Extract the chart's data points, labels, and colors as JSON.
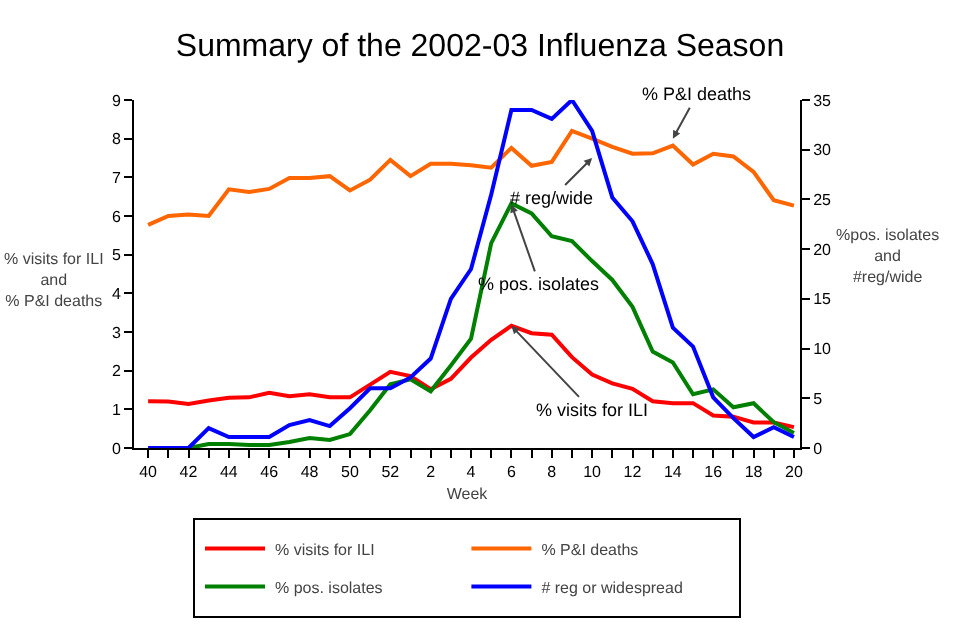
{
  "chart_data": {
    "type": "line",
    "title": "Summary of the 2002-03 Influenza Season",
    "xlabel": "Week",
    "ylabel": "% visits for ILI\nand\n% P&I deaths",
    "y2label": "%pos. isolates\nand\n#reg/wide",
    "categories": [
      "40",
      null,
      "42",
      null,
      "44",
      null,
      "46",
      null,
      "48",
      null,
      "50",
      null,
      "52",
      null,
      "2",
      null,
      "4",
      null,
      "6",
      null,
      "8",
      null,
      "10",
      null,
      "12",
      null,
      "14",
      null,
      "16",
      null,
      "18",
      null,
      "20"
    ],
    "series": [
      {
        "name": "% visits for ILI",
        "color": "#ff0000",
        "values": [
          1.21,
          1.2,
          1.14,
          1.23,
          1.3,
          1.31,
          1.43,
          1.34,
          1.39,
          1.31,
          1.31,
          1.64,
          1.97,
          1.86,
          1.52,
          1.79,
          2.34,
          2.8,
          3.16,
          2.97,
          2.93,
          2.35,
          1.9,
          1.67,
          1.53,
          1.21,
          1.16,
          1.16,
          0.84,
          0.81,
          0.66,
          0.66,
          0.54
        ]
      },
      {
        "name": "% P&I deaths",
        "color": "#ff6600",
        "values": [
          5.77,
          6.0,
          6.04,
          6.0,
          6.69,
          6.62,
          6.7,
          6.98,
          6.98,
          7.03,
          6.66,
          6.94,
          7.45,
          7.03,
          7.35,
          7.35,
          7.31,
          7.25,
          7.76,
          7.3,
          7.4,
          8.2,
          8.0,
          7.79,
          7.61,
          7.62,
          7.82,
          7.33,
          7.61,
          7.54,
          7.14,
          6.41,
          6.27
        ]
      },
      {
        "name": "% pos. isolates",
        "color": "#008000",
        "axis": "y2",
        "values": [
          null,
          null,
          0,
          0.4,
          0.4,
          0.3,
          0.3,
          0.6,
          1.0,
          0.8,
          1.4,
          3.8,
          6.4,
          6.9,
          5.7,
          8.3,
          11,
          20.6,
          24.6,
          23.6,
          21.3,
          20.8,
          18.8,
          16.9,
          14.2,
          9.7,
          8.6,
          5.4,
          5.9,
          4.1,
          4.5,
          2.6,
          1.5
        ]
      },
      {
        "name": "# reg or widespread",
        "color": "#0000ff",
        "axis": "y2",
        "values": [
          0,
          0,
          0,
          2.0,
          1.1,
          1.1,
          1.1,
          2.3,
          2.8,
          2.2,
          4.0,
          6.0,
          6.0,
          7.1,
          9.0,
          15.0,
          18.0,
          25.5,
          34,
          34,
          33.1,
          35,
          31.9,
          25.2,
          22.8,
          18.5,
          12.1,
          10.2,
          5.1,
          3.0,
          1.1,
          2.1,
          1.1
        ]
      }
    ],
    "ylim": [
      0,
      9
    ],
    "yticks": [
      0,
      1,
      2,
      3,
      4,
      5,
      6,
      7,
      8,
      9
    ],
    "y2lim": [
      0,
      35
    ],
    "y2ticks": [
      0,
      5,
      10,
      15,
      20,
      25,
      30,
      35
    ],
    "annotations": [
      {
        "text": "% P&I deaths",
        "x": "14",
        "y": 8.0
      },
      {
        "text": "# reg/wide",
        "x": "10",
        "y": 7.5
      },
      {
        "text": "% pos. isolates",
        "x": "6",
        "y": 6.3
      },
      {
        "text": "% visits for ILI",
        "x": "6",
        "y": 3.16
      }
    ],
    "grid": false,
    "legend": "bottom",
    "marker": "none",
    "line_style": "solid"
  }
}
